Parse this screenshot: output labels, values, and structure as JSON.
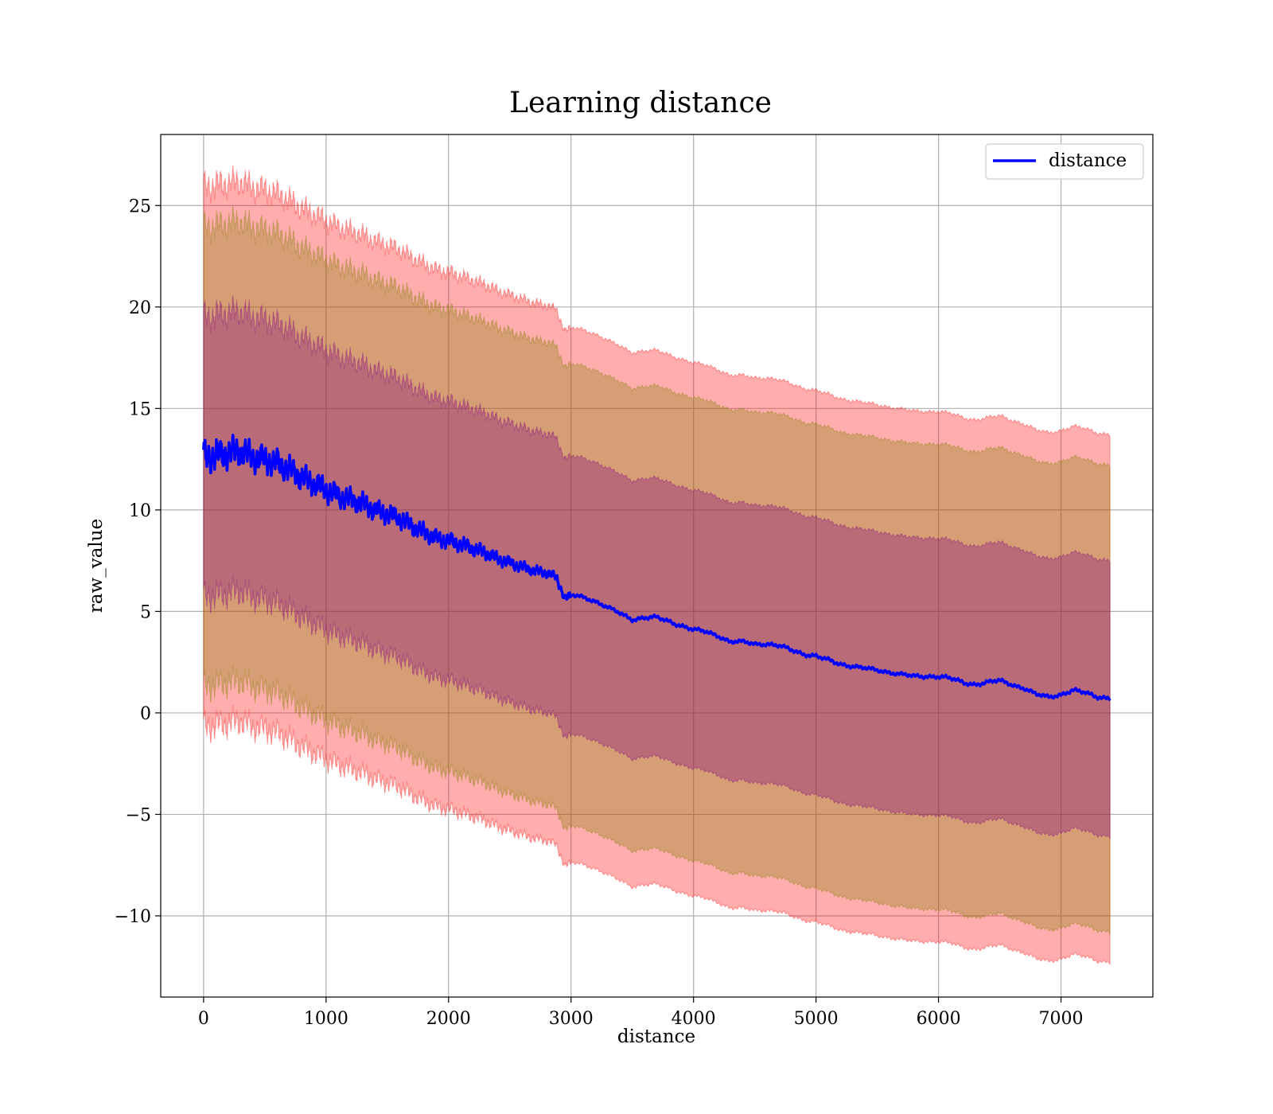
{
  "chart_data": {
    "type": "line",
    "title": "Learning distance",
    "xlabel": "distance",
    "ylabel": "raw_value",
    "xlim": [
      -350,
      7750
    ],
    "ylim": [
      -14,
      28.5
    ],
    "xticks": [
      0,
      1000,
      2000,
      3000,
      4000,
      5000,
      6000,
      7000
    ],
    "yticks": [
      -10,
      -5,
      0,
      5,
      10,
      15,
      20,
      25
    ],
    "xtick_labels": [
      "0",
      "1000",
      "2000",
      "3000",
      "4000",
      "5000",
      "6000",
      "7000"
    ],
    "ytick_labels": [
      "−10",
      "−5",
      "0",
      "5",
      "10",
      "15",
      "20",
      "25"
    ],
    "grid": true,
    "legend": {
      "position": "top-right",
      "entries": [
        "distance"
      ]
    },
    "colors": {
      "line": "#0000ff",
      "band_outer": "#ff0000",
      "band_middle": "#808000",
      "band_inner": "#800080"
    },
    "series": [
      {
        "name": "distance",
        "x": [
          0,
          100,
          200,
          300,
          400,
          500,
          600,
          700,
          800,
          900,
          1000,
          1100,
          1200,
          1300,
          1400,
          1500,
          1600,
          1700,
          1800,
          1900,
          2000,
          2100,
          2200,
          2300,
          2400,
          2500,
          2600,
          2700,
          2800,
          2880,
          2950,
          3000,
          3100,
          3200,
          3300,
          3400,
          3500,
          3600,
          3700,
          3800,
          3900,
          4000,
          4100,
          4200,
          4300,
          4400,
          4500,
          4600,
          4700,
          4800,
          4900,
          5000,
          5100,
          5200,
          5300,
          5400,
          5500,
          5600,
          5700,
          5800,
          5900,
          6000,
          6100,
          6200,
          6300,
          6400,
          6500,
          6600,
          6700,
          6800,
          6900,
          7000,
          7100,
          7200,
          7300,
          7400
        ],
        "y": [
          12.6,
          12.7,
          12.8,
          12.9,
          12.6,
          12.5,
          12.3,
          12.0,
          11.6,
          11.3,
          11.0,
          10.7,
          10.5,
          10.3,
          10.0,
          9.8,
          9.6,
          9.2,
          8.9,
          8.6,
          8.5,
          8.3,
          8.1,
          7.9,
          7.6,
          7.4,
          7.2,
          7.0,
          6.9,
          6.7,
          5.6,
          5.8,
          5.7,
          5.5,
          5.2,
          4.9,
          4.6,
          4.7,
          4.7,
          4.5,
          4.3,
          4.1,
          4.0,
          3.8,
          3.5,
          3.5,
          3.4,
          3.4,
          3.3,
          3.1,
          2.9,
          2.8,
          2.6,
          2.4,
          2.3,
          2.2,
          2.1,
          2.0,
          1.9,
          1.8,
          1.8,
          1.8,
          1.7,
          1.5,
          1.4,
          1.5,
          1.6,
          1.4,
          1.2,
          0.9,
          0.8,
          0.9,
          1.1,
          1.0,
          0.8,
          0.7
        ]
      }
    ],
    "bands": [
      {
        "level": "outer",
        "half_width_start": 13.3,
        "half_width_end": 13.0
      },
      {
        "level": "middle",
        "half_width_start": 11.3,
        "half_width_end": 11.5
      },
      {
        "level": "inner",
        "half_width_start": 6.9,
        "half_width_end": 6.8
      }
    ]
  }
}
